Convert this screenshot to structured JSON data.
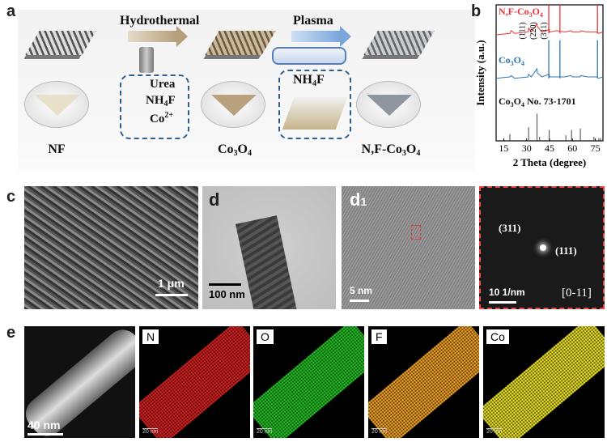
{
  "panels": {
    "a": "a",
    "b": "b",
    "c": "c",
    "d": "d",
    "d1_main": "d",
    "d1_sub": "1",
    "e": "e"
  },
  "panel_a": {
    "steps": [
      "Hydrothermal",
      "Plasma"
    ],
    "reagents1": [
      "Urea",
      "NH",
      "4",
      "F",
      "Co",
      "2+"
    ],
    "reagent2": [
      "NH",
      "4",
      "F"
    ],
    "captions": {
      "nf": "NF",
      "co3o4": [
        "Co",
        "3",
        "O",
        "4"
      ],
      "nf_co3o4": [
        "N,F-Co",
        "3",
        "O",
        "4"
      ]
    }
  },
  "chart_data": {
    "type": "line",
    "xlabel": "2 Theta (degree)",
    "ylabel": "Intensity (a.u.)",
    "xlim": [
      10,
      80
    ],
    "xticks": [
      15,
      30,
      45,
      60,
      75
    ],
    "series": [
      {
        "name": "N,F-Co3O4",
        "color": "#e8353a",
        "x": [
          10,
          19,
          20,
          22,
          31,
          31.3,
          33,
          36.8,
          37,
          40,
          44.8,
          45,
          50,
          55,
          59,
          60,
          65,
          65.4,
          70,
          75,
          76,
          77,
          80
        ],
        "y": [
          0.78,
          0.79,
          0.81,
          0.79,
          0.8,
          0.83,
          0.8,
          0.86,
          0.84,
          0.8,
          0.82,
          0.8,
          0.81,
          0.8,
          0.81,
          0.8,
          0.8,
          0.81,
          0.8,
          0.8,
          0.8,
          0.79,
          0.8
        ]
      },
      {
        "name": "Co3O4",
        "color": "#2e75b6",
        "x": [
          10,
          19,
          20,
          22,
          31,
          31.3,
          33,
          36.8,
          37,
          40,
          44.8,
          45,
          50,
          55,
          59,
          60,
          65,
          65.4,
          70,
          75,
          76,
          77,
          80
        ],
        "y": [
          0.46,
          0.47,
          0.48,
          0.46,
          0.47,
          0.49,
          0.47,
          0.53,
          0.5,
          0.47,
          0.49,
          0.47,
          0.47,
          0.47,
          0.48,
          0.47,
          0.47,
          0.48,
          0.47,
          0.47,
          0.47,
          0.46,
          0.47
        ]
      }
    ],
    "sharp_peaks": [
      {
        "x": 44.5,
        "color": "#e8353a",
        "top": 1.0,
        "base": 0.79
      },
      {
        "x": 51.8,
        "color": "#e8353a",
        "top": 1.0,
        "base": 0.79
      },
      {
        "x": 76.4,
        "color": "#e8353a",
        "top": 1.0,
        "base": 0.79
      },
      {
        "x": 44.5,
        "color": "#2e75b6",
        "top": 0.74,
        "base": 0.46
      },
      {
        "x": 51.8,
        "color": "#2e75b6",
        "top": 0.74,
        "base": 0.46
      },
      {
        "x": 76.4,
        "color": "#2e75b6",
        "top": 0.74,
        "base": 0.46
      }
    ],
    "reference": {
      "label": [
        "Co",
        "3",
        "O",
        "4",
        " No. 73-1701"
      ],
      "sticks": [
        {
          "x": 19.0,
          "h": 0.05
        },
        {
          "x": 31.3,
          "h": 0.1
        },
        {
          "x": 36.8,
          "h": 0.2
        },
        {
          "x": 38.5,
          "h": 0.03
        },
        {
          "x": 44.8,
          "h": 0.08
        },
        {
          "x": 55.7,
          "h": 0.04
        },
        {
          "x": 59.4,
          "h": 0.08
        },
        {
          "x": 65.2,
          "h": 0.09
        },
        {
          "x": 74.1,
          "h": 0.03
        },
        {
          "x": 77.3,
          "h": 0.02
        },
        {
          "x": 78.4,
          "h": 0.02
        }
      ]
    },
    "annotations": [
      "(111)",
      "(220)",
      "(311)"
    ],
    "legend_names": {
      "nfco": [
        "N,F-Co",
        "3",
        "O",
        "4"
      ],
      "co": [
        "Co",
        "3",
        "O",
        "4"
      ]
    }
  },
  "panel_c": {
    "scale": "1 μm"
  },
  "panel_d": {
    "scale": "100 nm"
  },
  "panel_d1": {
    "scale": "5 nm"
  },
  "panel_fft": {
    "planes": [
      "(311)",
      "(111)"
    ],
    "scale": "10 1/nm",
    "zone": "[0-11]"
  },
  "panel_e": {
    "haadf_scale": "40 nm",
    "maps": [
      {
        "element": "N",
        "color": "#d62020",
        "scale": "20 nm"
      },
      {
        "element": "O",
        "color": "#22c022",
        "scale": "20 nm"
      },
      {
        "element": "F",
        "color": "#f0a020",
        "scale": "20 nm"
      },
      {
        "element": "Co",
        "color": "#e8e020",
        "scale": "20 nm"
      }
    ]
  }
}
